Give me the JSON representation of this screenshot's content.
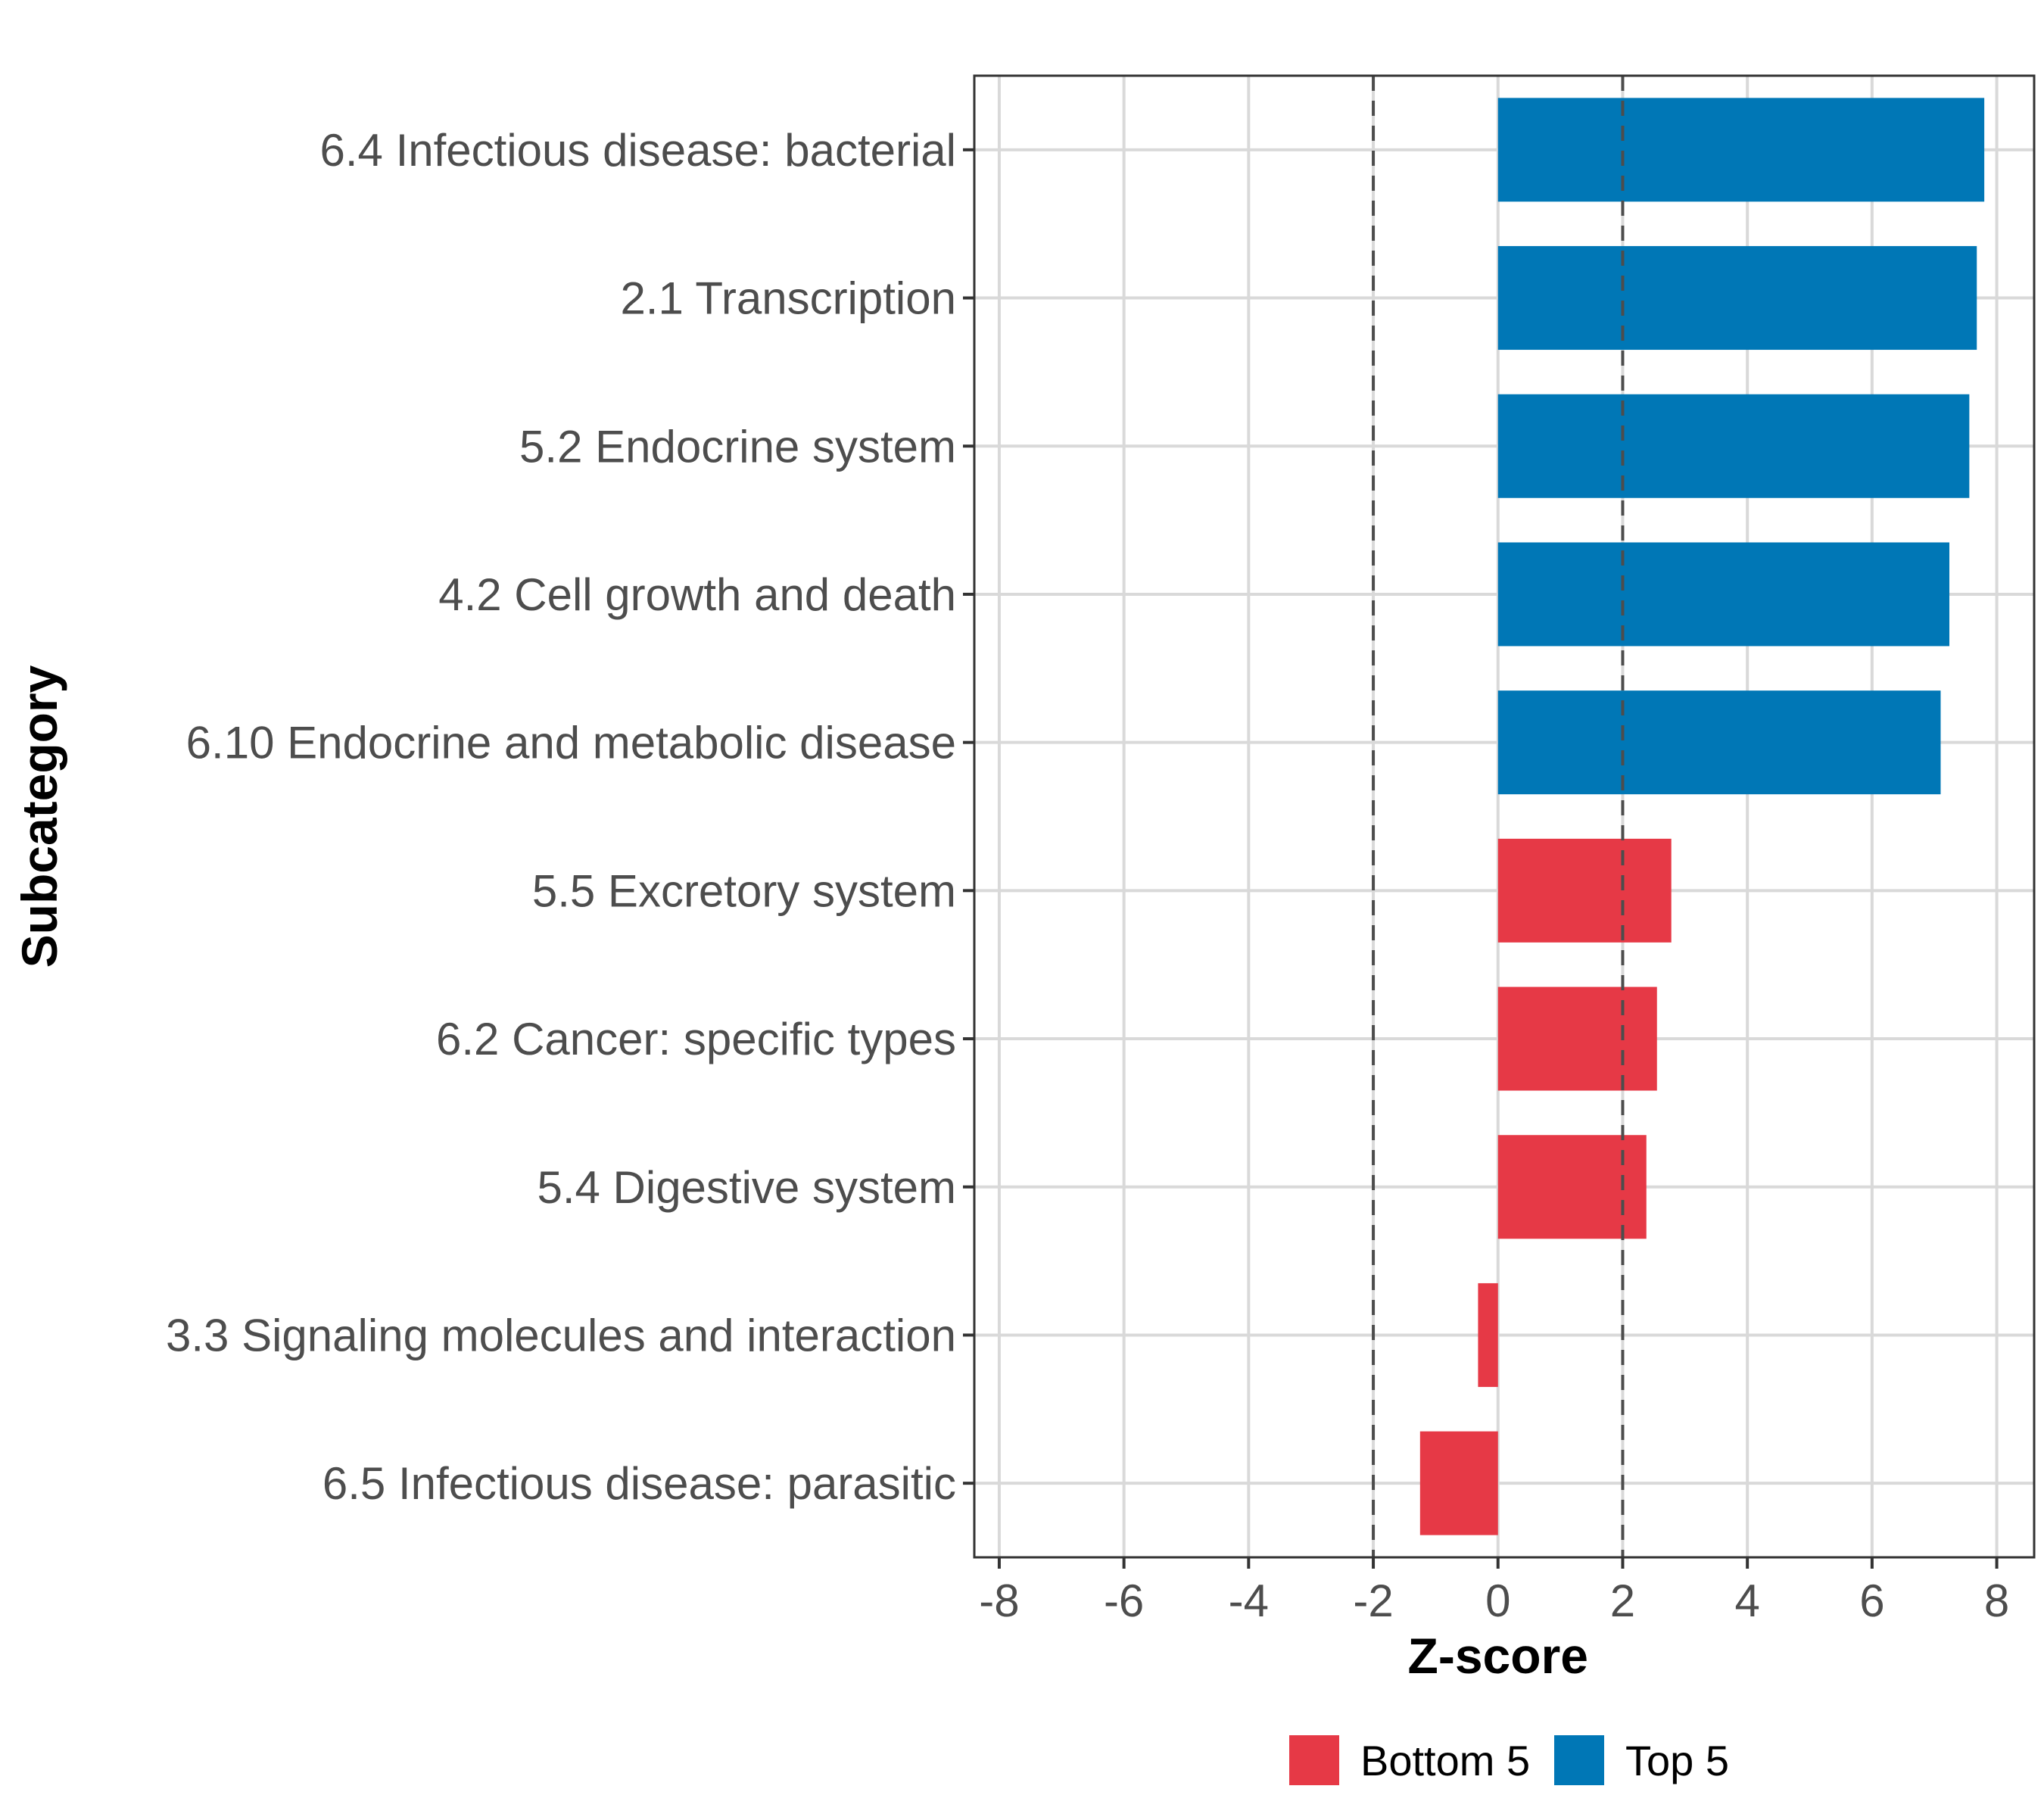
{
  "chart_data": {
    "type": "bar",
    "orientation": "horizontal",
    "xlabel": "Z-score",
    "ylabel": "Subcategory",
    "xlim": [
      -8.4,
      8.6
    ],
    "xticks": [
      -8,
      -6,
      -4,
      -2,
      0,
      2,
      4,
      6,
      8
    ],
    "xtick_labels": [
      "-8",
      "-6",
      "-4",
      "-2",
      "0",
      "2",
      "4",
      "6",
      "8"
    ],
    "grid": true,
    "reference_lines": [
      -2,
      2
    ],
    "legend_position": "bottom",
    "legend": [
      {
        "name": "Bottom 5",
        "color": "#e63946"
      },
      {
        "name": "Top 5",
        "color": "#0077b6"
      }
    ],
    "categories": [
      "6.4 Infectious disease: bacterial",
      "2.1 Transcription",
      "5.2 Endocrine system",
      "4.2 Cell growth and death",
      "6.10 Endocrine and metabolic disease",
      "5.5 Excretory system",
      "6.2 Cancer: specific types",
      "5.4 Digestive system",
      "3.3 Signaling molecules and interaction",
      "6.5 Infectious disease: parasitic"
    ],
    "values": [
      7.8,
      7.68,
      7.56,
      7.24,
      7.1,
      2.78,
      2.55,
      2.38,
      -0.32,
      -1.25
    ],
    "groups": [
      "Top 5",
      "Top 5",
      "Top 5",
      "Top 5",
      "Top 5",
      "Bottom 5",
      "Bottom 5",
      "Bottom 5",
      "Bottom 5",
      "Bottom 5"
    ]
  }
}
